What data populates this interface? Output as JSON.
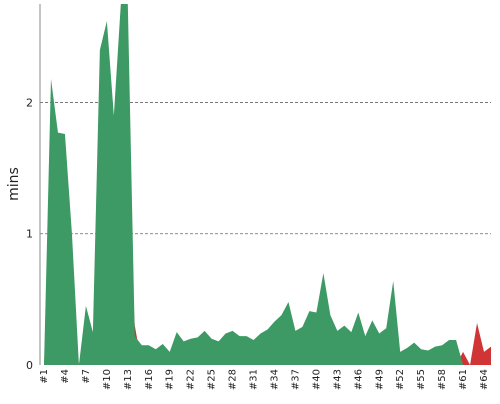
{
  "chart_data": {
    "type": "area",
    "ylabel": "mins",
    "ylim": [
      0,
      2.75
    ],
    "yticks": [
      0,
      1,
      2
    ],
    "grid": "horizontal-dashed",
    "categories": [
      "#1",
      "#2",
      "#3",
      "#4",
      "#5",
      "#6",
      "#7",
      "#8",
      "#9",
      "#10",
      "#11",
      "#12",
      "#13",
      "#14",
      "#15",
      "#16",
      "#17",
      "#18",
      "#19",
      "#20",
      "#21",
      "#22",
      "#23",
      "#24",
      "#25",
      "#26",
      "#27",
      "#28",
      "#29",
      "#30",
      "#31",
      "#32",
      "#33",
      "#34",
      "#35",
      "#36",
      "#37",
      "#38",
      "#39",
      "#40",
      "#41",
      "#42",
      "#43",
      "#44",
      "#45",
      "#46",
      "#47",
      "#48",
      "#49",
      "#50",
      "#51",
      "#52",
      "#53",
      "#54",
      "#55",
      "#56",
      "#57",
      "#58",
      "#59",
      "#60",
      "#61",
      "#62",
      "#63",
      "#64",
      "#65"
    ],
    "x_tick_labels": [
      "#1",
      "#4",
      "#7",
      "#10",
      "#13",
      "#16",
      "#19",
      "#22",
      "#25",
      "#28",
      "#31",
      "#34",
      "#37",
      "#40",
      "#43",
      "#46",
      "#49",
      "#52",
      "#55",
      "#58",
      "#61",
      "#64"
    ],
    "series": [
      {
        "color": "#d13434",
        "values": [
          0,
          0.95,
          1.75,
          1.3,
          0.45,
          0,
          0.3,
          0.02,
          1.1,
          2.0,
          1.5,
          1.5,
          1.2,
          0.3,
          0,
          0,
          0,
          0,
          0,
          0,
          0,
          0,
          0,
          0,
          0,
          0,
          0,
          0,
          0,
          0,
          0,
          0,
          0,
          0,
          0,
          0,
          0,
          0,
          0,
          0,
          0,
          0,
          0,
          0,
          0,
          0,
          0,
          0,
          0,
          0,
          0,
          0,
          0,
          0,
          0,
          0,
          0,
          0,
          0,
          0,
          0.1,
          0,
          0.32,
          0.1,
          0.14
        ]
      },
      {
        "color": "#3d9a64",
        "values": [
          0,
          2.18,
          1.77,
          1.76,
          1.0,
          0,
          0.45,
          0.25,
          2.4,
          2.62,
          1.9,
          2.75,
          2.75,
          0.22,
          0.15,
          0.15,
          0.12,
          0.16,
          0.1,
          0.25,
          0.18,
          0.2,
          0.21,
          0.26,
          0.2,
          0.18,
          0.24,
          0.26,
          0.22,
          0.22,
          0.19,
          0.24,
          0.27,
          0.33,
          0.38,
          0.48,
          0.26,
          0.29,
          0.41,
          0.4,
          0.7,
          0.38,
          0.26,
          0.3,
          0.25,
          0.4,
          0.22,
          0.34,
          0.24,
          0.28,
          0.64,
          0.1,
          0.13,
          0.17,
          0.12,
          0.11,
          0.14,
          0.15,
          0.19,
          0.19,
          0,
          0,
          0,
          0,
          0
        ]
      }
    ]
  }
}
